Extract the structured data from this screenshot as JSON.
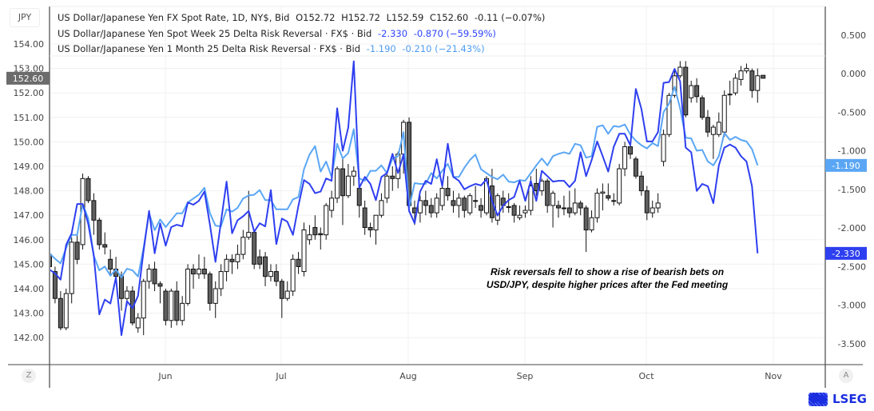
{
  "legend": {
    "spot": {
      "name": "US Dollar/Japanese Yen FX Spot Rate, 1D, NY$, Bid",
      "open": "O152.72",
      "high": "H152.72",
      "low": "L152.59",
      "close": "C152.60",
      "change": "-0.11 (−0.07%)"
    },
    "week_rr": {
      "name": "US Dollar/Japanese Yen Spot Week 25 Delta Risk Reversal · FX$ · Bid",
      "last": "-2.330",
      "change": "-0.870 (−59.59%)"
    },
    "month_rr": {
      "name": "US Dollar/Japanese Yen 1 Month 25 Delta Risk Reversal · FX$ · Bid",
      "last": "-1.190",
      "change": "-0.210 (−21.43%)"
    }
  },
  "currency_label": "JPY",
  "annotation": [
    "Risk reversals fell to show a rise of bearish bets on",
    "USD/JPY, despite higher prices after the Fed meeting"
  ],
  "bottom": {
    "left_button": "Z",
    "right_button": "A"
  },
  "logo_text": "LSEG",
  "colors": {
    "candle_down": "#5f5f5f",
    "candle_up": "#ffffff",
    "week_rr": "#2e3ff0",
    "month_rr": "#5aa6f5",
    "price_label": "#6b6b6b"
  },
  "chart_data": {
    "type": "candlestick+line",
    "grid": true,
    "x_ticks": [
      "Jun",
      "Jul",
      "Aug",
      "Sep",
      "Oct",
      "Nov"
    ],
    "left_axis": {
      "ylim": [
        141.4,
        154.9
      ],
      "ticks": [
        "154.00",
        "153.00",
        "152.00",
        "151.00",
        "150.00",
        "149.00",
        "148.00",
        "147.00",
        "146.00",
        "145.00",
        "144.00",
        "143.00",
        "142.00"
      ],
      "last_label": "152.60",
      "last_value": 152.6
    },
    "right_axis": {
      "ylim": [
        -3.85,
        0.87
      ],
      "ticks": [
        "0.500",
        "0.000",
        "-0.500",
        "-1.000",
        "-1.500",
        "-2.000",
        "-2.500",
        "-3.000",
        "-3.500"
      ],
      "last_labels": [
        {
          "text": "-1.190",
          "value": -1.19,
          "series": "month_rr"
        },
        {
          "text": "-2.330",
          "value": -2.33,
          "series": "week_rr"
        }
      ]
    },
    "candles_ohlc": [
      [
        145.4,
        145.6,
        144.6,
        144.9
      ],
      [
        144.7,
        144.9,
        143.4,
        143.6
      ],
      [
        143.6,
        143.9,
        142.3,
        142.4
      ],
      [
        142.4,
        144.0,
        142.3,
        143.8
      ],
      [
        143.8,
        146.1,
        143.4,
        145.9
      ],
      [
        145.9,
        146.2,
        145.0,
        145.2
      ],
      [
        145.8,
        148.7,
        145.6,
        148.5
      ],
      [
        148.5,
        148.6,
        147.5,
        147.6
      ],
      [
        147.6,
        147.9,
        146.2,
        146.8
      ],
      [
        146.8,
        146.9,
        145.6,
        145.8
      ],
      [
        145.8,
        146.3,
        145.4,
        145.7
      ],
      [
        145.2,
        145.6,
        144.6,
        144.8
      ],
      [
        144.8,
        145.3,
        144.3,
        144.5
      ],
      [
        144.5,
        144.7,
        143.1,
        143.6
      ],
      [
        143.6,
        144.1,
        143.3,
        143.9
      ],
      [
        143.9,
        144.1,
        142.5,
        142.6
      ],
      [
        142.4,
        143.0,
        142.2,
        142.8
      ],
      [
        142.8,
        144.4,
        142.1,
        144.3
      ],
      [
        144.3,
        145.0,
        144.0,
        144.8
      ],
      [
        144.8,
        145.1,
        143.9,
        144.2
      ],
      [
        144.2,
        144.3,
        143.4,
        144.1
      ],
      [
        143.9,
        144.0,
        142.5,
        142.7
      ],
      [
        142.7,
        144.0,
        142.4,
        143.9
      ],
      [
        143.9,
        144.3,
        142.5,
        142.7
      ],
      [
        142.7,
        143.7,
        142.5,
        143.4
      ],
      [
        143.4,
        145.0,
        143.3,
        144.8
      ],
      [
        144.8,
        145.0,
        144.0,
        144.6
      ],
      [
        144.6,
        145.4,
        144.4,
        144.8
      ],
      [
        144.8,
        145.3,
        144.4,
        144.6
      ],
      [
        144.6,
        144.7,
        143.1,
        143.4
      ],
      [
        143.4,
        144.3,
        142.8,
        144.0
      ],
      [
        144.0,
        145.0,
        143.7,
        144.7
      ],
      [
        144.7,
        145.4,
        144.3,
        145.2
      ],
      [
        145.2,
        145.4,
        144.6,
        145.1
      ],
      [
        145.1,
        145.8,
        144.8,
        145.4
      ],
      [
        145.4,
        146.4,
        145.2,
        146.1
      ],
      [
        146.1,
        148.0,
        146.0,
        146.3
      ],
      [
        146.3,
        146.4,
        144.8,
        145.0
      ],
      [
        145.3,
        145.6,
        144.8,
        145.0
      ],
      [
        145.3,
        145.5,
        144.1,
        144.5
      ],
      [
        144.5,
        145.0,
        144.3,
        144.7
      ],
      [
        144.7,
        145.0,
        144.1,
        144.3
      ],
      [
        144.3,
        144.4,
        142.8,
        143.6
      ],
      [
        143.6,
        144.3,
        143.5,
        143.9
      ],
      [
        143.9,
        145.4,
        143.7,
        145.2
      ],
      [
        145.2,
        145.5,
        144.6,
        144.9
      ],
      [
        144.7,
        146.7,
        144.5,
        146.4
      ],
      [
        146.0,
        146.6,
        145.8,
        146.2
      ],
      [
        146.5,
        147.0,
        146.0,
        146.2
      ],
      [
        146.25,
        146.5,
        145.6,
        146.2
      ],
      [
        146.2,
        147.5,
        146.0,
        147.4
      ],
      [
        147.2,
        148.0,
        146.9,
        147.7
      ],
      [
        147.7,
        149.0,
        147.5,
        148.9
      ],
      [
        148.9,
        149.3,
        146.6,
        147.8
      ],
      [
        147.8,
        149.1,
        147.7,
        148.6
      ],
      [
        148.6,
        149.0,
        148.2,
        148.8
      ],
      [
        148.1,
        148.3,
        146.9,
        147.4
      ],
      [
        147.3,
        147.6,
        146.2,
        146.5
      ],
      [
        146.5,
        146.7,
        146.1,
        146.4
      ],
      [
        146.4,
        147.0,
        145.8,
        147.0
      ],
      [
        147.0,
        147.9,
        146.9,
        147.6
      ],
      [
        147.7,
        148.7,
        147.5,
        148.6
      ],
      [
        148.6,
        149.0,
        148.0,
        148.5
      ],
      [
        148.5,
        149.6,
        148.1,
        149.5
      ],
      [
        149.5,
        150.9,
        148.7,
        150.8
      ],
      [
        150.8,
        151.0,
        147.3,
        147.4
      ],
      [
        147.3,
        147.6,
        146.6,
        147.1
      ],
      [
        147.1,
        147.8,
        146.7,
        147.6
      ],
      [
        147.6,
        148.0,
        147.0,
        147.4
      ],
      [
        147.4,
        147.7,
        146.9,
        147.1
      ],
      [
        147.1,
        147.9,
        146.9,
        147.7
      ],
      [
        147.4,
        148.2,
        147.2,
        148.1
      ],
      [
        148.1,
        148.6,
        147.6,
        147.8
      ],
      [
        147.6,
        148.0,
        147.1,
        147.4
      ],
      [
        147.4,
        147.9,
        146.9,
        147.7
      ],
      [
        147.7,
        147.8,
        146.9,
        147.2
      ],
      [
        147.1,
        147.9,
        147.0,
        147.8
      ],
      [
        147.6,
        148.2,
        147.3,
        147.6
      ],
      [
        147.4,
        147.7,
        146.9,
        147.2
      ],
      [
        147.1,
        148.6,
        147.0,
        148.5
      ],
      [
        148.2,
        148.9,
        146.7,
        146.9
      ],
      [
        146.8,
        147.9,
        146.6,
        147.8
      ],
      [
        147.7,
        148.0,
        147.1,
        147.4
      ],
      [
        147.35,
        147.9,
        147.1,
        147.35
      ],
      [
        147.4,
        147.5,
        146.7,
        147.0
      ],
      [
        146.9,
        147.4,
        146.8,
        147.0
      ],
      [
        147.1,
        147.4,
        146.9,
        147.2
      ],
      [
        147.2,
        148.6,
        147.0,
        148.2
      ],
      [
        148.3,
        148.9,
        147.8,
        148.0
      ],
      [
        148.0,
        148.5,
        147.8,
        148.4
      ],
      [
        148.4,
        148.5,
        147.1,
        147.4
      ],
      [
        147.4,
        148.0,
        146.5,
        147.9
      ],
      [
        147.4,
        147.6,
        146.9,
        147.3
      ],
      [
        147.3,
        147.8,
        147.0,
        147.3
      ],
      [
        147.3,
        148.0,
        146.9,
        147.1
      ],
      [
        147.1,
        148.1,
        147.0,
        147.5
      ],
      [
        147.5,
        147.6,
        147.0,
        147.3
      ],
      [
        147.3,
        147.4,
        145.5,
        146.4
      ],
      [
        146.4,
        147.2,
        146.3,
        146.9
      ],
      [
        146.9,
        148.1,
        146.7,
        147.9
      ],
      [
        147.9,
        148.3,
        147.2,
        147.95
      ],
      [
        147.8,
        148.3,
        147.6,
        147.7
      ],
      [
        147.6,
        147.9,
        147.4,
        147.6
      ],
      [
        147.5,
        149.1,
        147.4,
        148.9
      ],
      [
        148.9,
        150.0,
        148.6,
        149.8
      ],
      [
        149.8,
        150.0,
        149.3,
        149.5
      ],
      [
        149.3,
        149.4,
        148.5,
        148.6
      ],
      [
        148.6,
        148.8,
        147.8,
        148.0
      ],
      [
        148.0,
        148.2,
        146.8,
        147.1
      ],
      [
        147.1,
        147.6,
        146.9,
        147.3
      ],
      [
        147.3,
        147.9,
        147.1,
        147.5
      ],
      [
        149.2,
        150.5,
        149.0,
        150.3
      ],
      [
        150.3,
        152.0,
        150.2,
        151.9
      ],
      [
        151.9,
        153.0,
        151.8,
        152.7
      ],
      [
        152.7,
        153.3,
        152.6,
        153.05
      ],
      [
        153.05,
        153.3,
        151.0,
        151.1
      ],
      [
        151.8,
        152.5,
        151.6,
        152.3
      ],
      [
        152.3,
        152.6,
        151.6,
        151.85
      ],
      [
        151.8,
        151.9,
        150.9,
        151.0
      ],
      [
        151.0,
        151.3,
        150.2,
        150.4
      ],
      [
        150.3,
        150.7,
        149.3,
        150.6
      ],
      [
        150.3,
        151.2,
        150.2,
        150.8
      ],
      [
        150.4,
        152.1,
        150.2,
        151.9
      ],
      [
        151.95,
        152.5,
        151.5,
        151.95
      ],
      [
        152.0,
        152.8,
        151.9,
        152.6
      ],
      [
        152.55,
        153.1,
        152.3,
        152.9
      ],
      [
        152.9,
        153.2,
        152.8,
        153.0
      ],
      [
        152.9,
        153.0,
        151.8,
        152.1
      ],
      [
        152.1,
        153.0,
        151.6,
        152.7
      ],
      [
        152.72,
        152.72,
        152.59,
        152.6
      ]
    ],
    "series": [
      {
        "name": "US Dollar/Japanese Yen Spot Week 25 Delta Risk Reversal",
        "axis": "right",
        "values": [
          -2.54,
          -2.59,
          -2.67,
          -2.22,
          -2.07,
          -1.69,
          -1.69,
          -1.95,
          -2.36,
          -3.12,
          -2.93,
          -2.98,
          -2.64,
          -3.39,
          -2.95,
          -3.04,
          -2.88,
          -2.3,
          -1.78,
          -2.33,
          -1.94,
          -2.23,
          -1.99,
          -1.96,
          -1.98,
          -1.67,
          -1.7,
          -1.65,
          -1.53,
          -1.96,
          -2.44,
          -1.92,
          -1.4,
          -2.07,
          -1.9,
          -1.85,
          -1.78,
          -2.05,
          -1.94,
          -1.98,
          -1.51,
          -2.21,
          -1.88,
          -1.92,
          -2.09,
          -1.71,
          -1.38,
          -1.43,
          -1.55,
          -1.53,
          -1.36,
          -1.39,
          -0.45,
          -1.0,
          -0.7,
          0.16,
          -1.48,
          -1.34,
          -1.43,
          -1.64,
          -1.34,
          -1.29,
          -1.04,
          -1.29,
          -1.05,
          -1.78,
          -1.94,
          -1.53,
          -1.39,
          -1.43,
          -1.11,
          -1.46,
          -0.91,
          -1.34,
          -1.39,
          -1.5,
          -1.46,
          -1.43,
          -1.45,
          -1.37,
          -1.65,
          -1.84,
          -1.71,
          -1.64,
          -1.6,
          -1.39,
          -1.65,
          -1.39,
          -1.65,
          -1.26,
          -1.33,
          -1.4,
          -1.39,
          -1.39,
          -1.47,
          -1.39,
          -1.02,
          -1.33,
          -1.12,
          -0.88,
          -1.07,
          -1.27,
          -0.95,
          -0.78,
          -0.78,
          -0.93,
          -0.2,
          -0.46,
          -0.88,
          -0.88,
          -0.76,
          -0.12,
          -0.11,
          0.06,
          -0.1,
          -0.96,
          -1.02,
          -1.52,
          -1.43,
          -1.46,
          -1.68,
          -1.19,
          -0.96,
          -0.92,
          -0.96,
          -1.07,
          -1.14,
          -1.46,
          -2.33
        ]
      },
      {
        "name": "US Dollar/Japanese Yen 1 Month 25 Delta Risk Reversal",
        "axis": "right",
        "values": [
          -2.33,
          -2.4,
          -2.46,
          -2.26,
          -2.09,
          -2.09,
          -1.69,
          -1.88,
          -2.36,
          -2.55,
          -2.5,
          -2.62,
          -2.54,
          -2.64,
          -2.53,
          -2.55,
          -2.63,
          -2.26,
          -1.81,
          -2.03,
          -1.89,
          -1.99,
          -1.9,
          -1.81,
          -1.81,
          -1.67,
          -1.62,
          -1.57,
          -1.48,
          -1.81,
          -1.97,
          -1.98,
          -1.76,
          -1.79,
          -1.74,
          -1.62,
          -1.58,
          -1.57,
          -1.51,
          -1.64,
          -1.64,
          -1.76,
          -1.76,
          -1.76,
          -1.63,
          -1.6,
          -1.24,
          -1.05,
          -0.94,
          -1.27,
          -1.14,
          -1.34,
          -0.91,
          -1.1,
          -1.03,
          -0.72,
          -1.36,
          -1.39,
          -1.26,
          -1.26,
          -1.19,
          -1.29,
          -1.1,
          -1.07,
          -0.76,
          -1.74,
          -1.42,
          -1.43,
          -1.43,
          -1.29,
          -1.36,
          -1.26,
          -1.17,
          -1.34,
          -1.34,
          -1.22,
          -1.12,
          -1.05,
          -1.24,
          -1.29,
          -1.34,
          -1.37,
          -1.31,
          -1.4,
          -1.41,
          -1.38,
          -1.39,
          -1.29,
          -1.19,
          -1.1,
          -1.19,
          -1.07,
          -1.04,
          -1.02,
          -1.04,
          -0.91,
          -0.93,
          -1.09,
          -1.07,
          -0.69,
          -0.67,
          -0.78,
          -0.68,
          -0.69,
          -0.66,
          -0.79,
          -0.87,
          -0.93,
          -0.97,
          -0.9,
          -0.94,
          -0.5,
          -0.39,
          -0.17,
          -0.45,
          -0.83,
          -0.84,
          -1.0,
          -0.99,
          -1.14,
          -1.19,
          -1.07,
          -0.77,
          -0.86,
          -0.82,
          -0.86,
          -0.88,
          -0.98,
          -1.19
        ]
      }
    ]
  }
}
